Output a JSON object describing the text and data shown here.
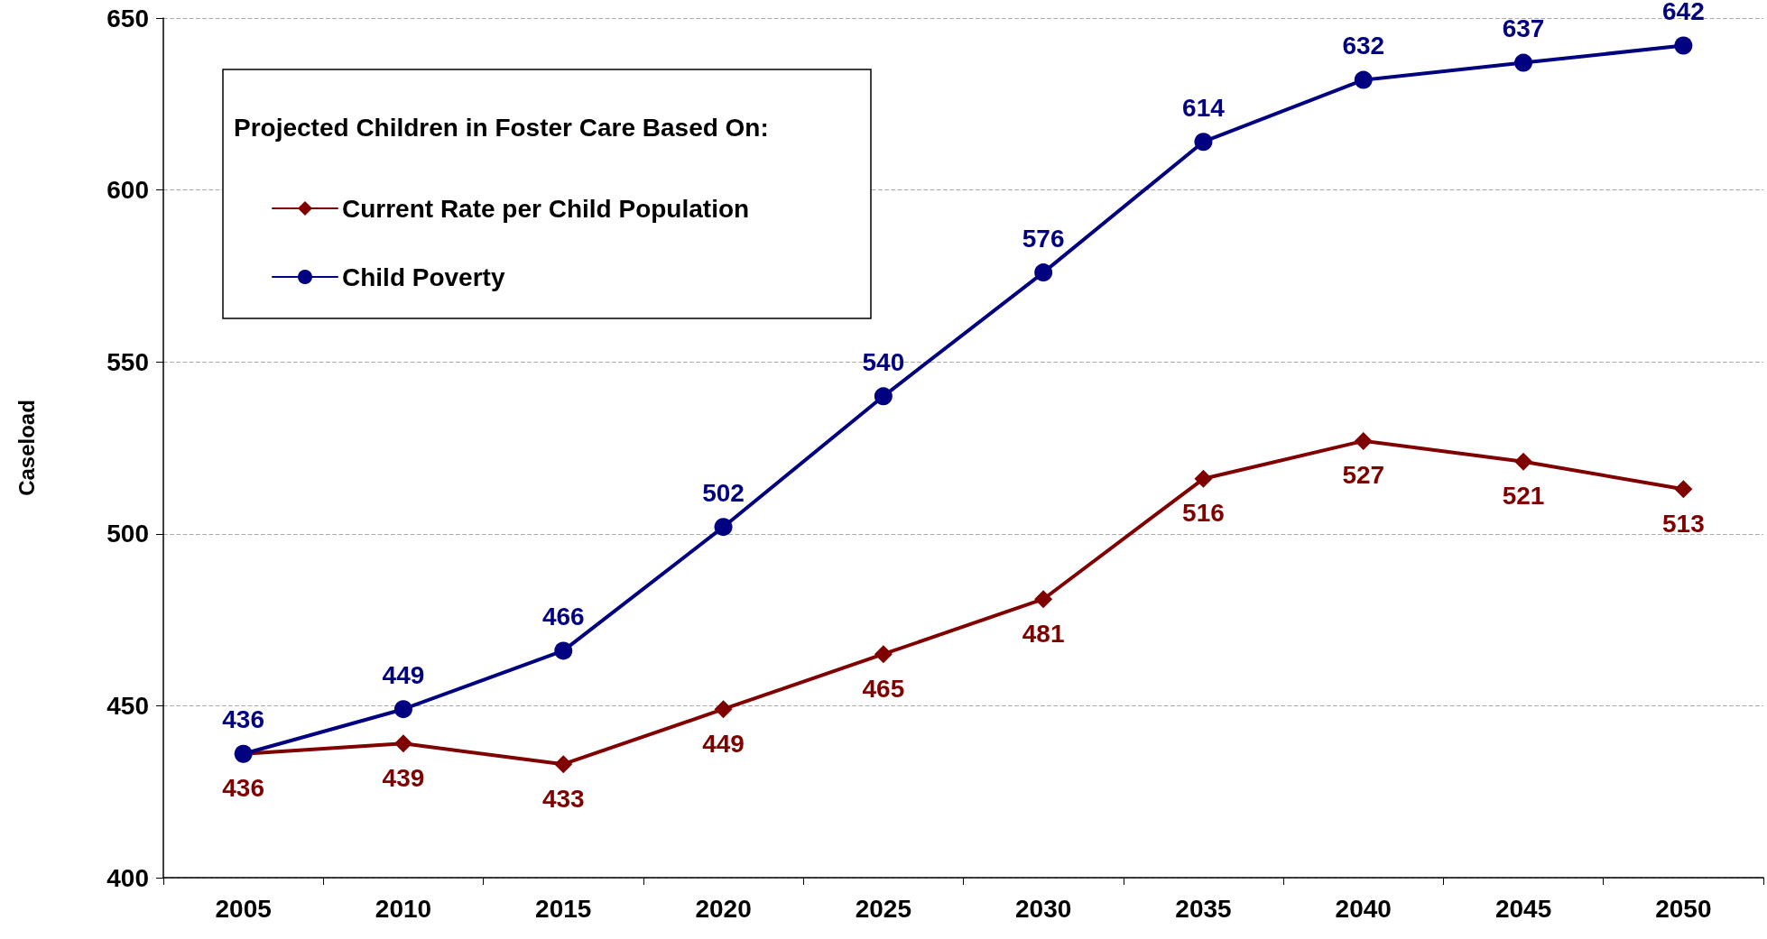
{
  "chart_data": {
    "type": "line",
    "ylabel": "Caseload",
    "legend_title": "Projected Children in Foster Care Based On:",
    "categories": [
      "2005",
      "2010",
      "2015",
      "2020",
      "2025",
      "2030",
      "2035",
      "2040",
      "2045",
      "2050"
    ],
    "series": [
      {
        "name": "Current Rate per Child Population",
        "color": "#800000",
        "marker": "diamond",
        "values": [
          436,
          439,
          433,
          449,
          465,
          481,
          516,
          527,
          521,
          513
        ]
      },
      {
        "name": "Child Poverty",
        "color": "#000080",
        "marker": "circle",
        "values": [
          436,
          449,
          466,
          502,
          540,
          576,
          614,
          632,
          637,
          642
        ]
      }
    ],
    "ylim": [
      400,
      650
    ],
    "yticks": [
      400,
      450,
      500,
      550,
      600,
      650
    ],
    "grid": "y",
    "legend": "top left",
    "data_labels": true,
    "line_style": "solid"
  }
}
